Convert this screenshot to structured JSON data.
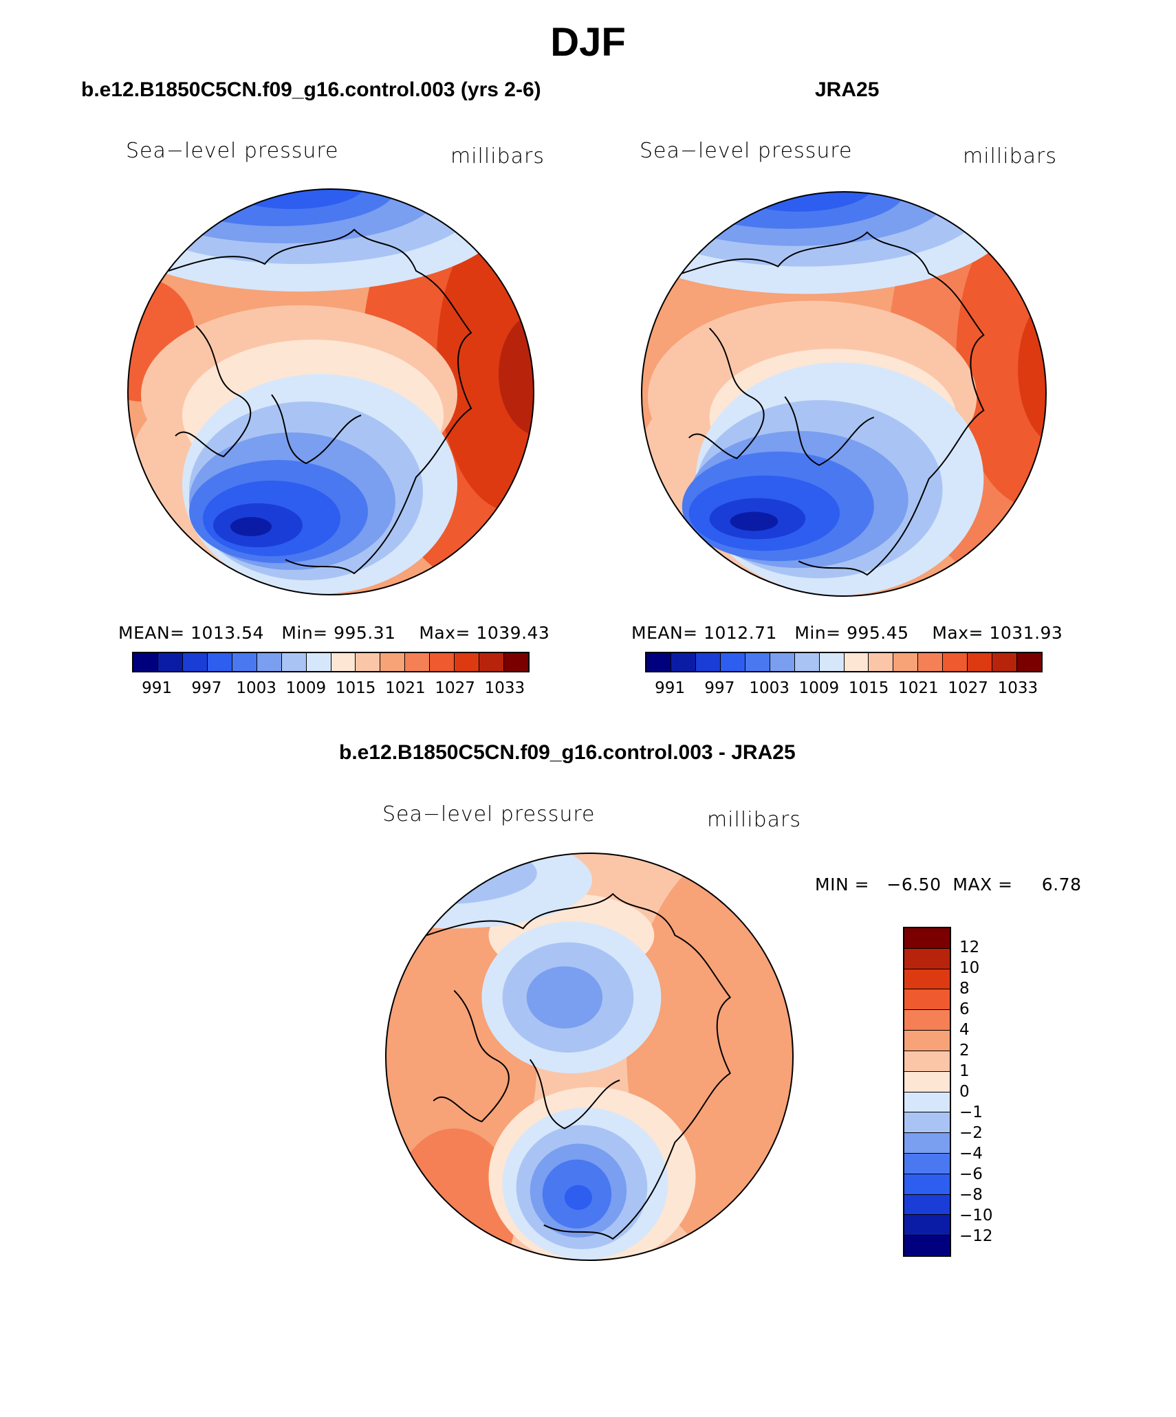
{
  "title": "DJF",
  "colors": {
    "abs_scale": [
      "#00007f",
      "#0a1ca6",
      "#1a3dd8",
      "#2d5ef0",
      "#4a78f0",
      "#7a9ef0",
      "#a9c4f4",
      "#d6e7fb",
      "#fde6d4",
      "#fbc6a8",
      "#f7a277",
      "#f58055",
      "#ef5a2e",
      "#dd3a12",
      "#b8240b",
      "#7a0000"
    ],
    "diff_scale": [
      "#7a0000",
      "#b8240b",
      "#dd3a12",
      "#ef5a2e",
      "#f58055",
      "#f7a277",
      "#fbc6a8",
      "#fde6d4",
      "#d6e7fb",
      "#a9c4f4",
      "#7a9ef0",
      "#4a78f0",
      "#2d5ef0",
      "#1a3dd8",
      "#0a1ca6",
      "#00007f"
    ]
  },
  "panels": [
    {
      "title": "b.e12.B1850C5CN.f09_g16.control.003 (yrs 2-6)",
      "variable": "Sea−level pressure",
      "units": "millibars",
      "mean_label": "MEAN=",
      "mean": "1013.54",
      "min_label": "Min=",
      "min": "995.31",
      "max_label": "Max=",
      "max": "1039.43",
      "colorbar_ticks": [
        "991",
        "997",
        "1003",
        "1009",
        "1015",
        "1021",
        "1027",
        "1033"
      ]
    },
    {
      "title": "JRA25",
      "variable": "Sea−level pressure",
      "units": "millibars",
      "mean_label": "MEAN=",
      "mean": "1012.71",
      "min_label": "Min=",
      "min": "995.45",
      "max_label": "Max=",
      "max": "1031.93",
      "colorbar_ticks": [
        "991",
        "997",
        "1003",
        "1009",
        "1015",
        "1021",
        "1027",
        "1033"
      ]
    }
  ],
  "diff_panel": {
    "title": "b.e12.B1850C5CN.f09_g16.control.003 - JRA25",
    "variable": "Sea−level pressure",
    "units": "millibars",
    "stats": "MIN =   −6.50  MAX =     6.78",
    "colorbar_ticks": [
      "12",
      "10",
      "8",
      "6",
      "4",
      "2",
      "1",
      "0",
      "−1",
      "−2",
      "−4",
      "−6",
      "−8",
      "−10",
      "−12"
    ]
  }
}
